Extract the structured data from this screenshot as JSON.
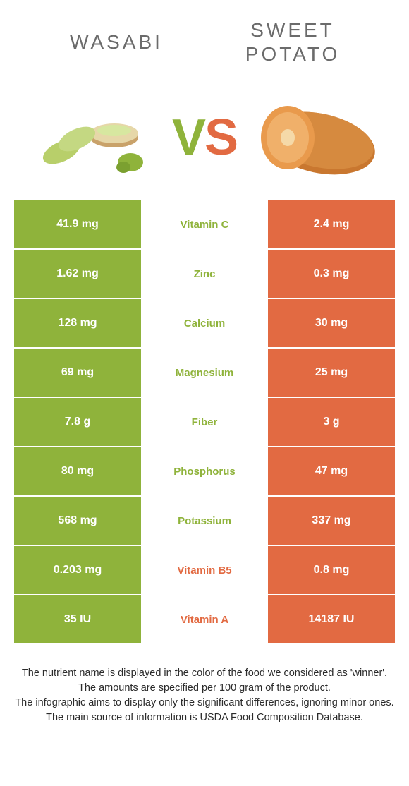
{
  "titles": {
    "left": "WASABI",
    "right_line1": "SWEET",
    "right_line2": "POTATO"
  },
  "vs": {
    "v": "V",
    "s": "S"
  },
  "colors": {
    "left": "#8fb33b",
    "right": "#e26a42",
    "row_text_white": "#ffffff",
    "background": "#ffffff",
    "title_gray": "#6b6b6b",
    "footer_text": "#2b2b2b"
  },
  "rows": [
    {
      "left": "41.9 mg",
      "label": "Vitamin C",
      "right": "2.4 mg",
      "winner": "left"
    },
    {
      "left": "1.62 mg",
      "label": "Zinc",
      "right": "0.3 mg",
      "winner": "left"
    },
    {
      "left": "128 mg",
      "label": "Calcium",
      "right": "30 mg",
      "winner": "left"
    },
    {
      "left": "69 mg",
      "label": "Magnesium",
      "right": "25 mg",
      "winner": "left"
    },
    {
      "left": "7.8 g",
      "label": "Fiber",
      "right": "3 g",
      "winner": "left"
    },
    {
      "left": "80 mg",
      "label": "Phosphorus",
      "right": "47 mg",
      "winner": "left"
    },
    {
      "left": "568 mg",
      "label": "Potassium",
      "right": "337 mg",
      "winner": "left"
    },
    {
      "left": "0.203 mg",
      "label": "Vitamin B5",
      "right": "0.8 mg",
      "winner": "right"
    },
    {
      "left": "35 IU",
      "label": "Vitamin A",
      "right": "14187 IU",
      "winner": "right"
    }
  ],
  "footer": {
    "lines": [
      "The nutrient name is displayed in the color of the food we considered as 'winner'.",
      "The amounts are specified per 100 gram of the product.",
      "The infographic aims to display only the significant differences, ignoring minor ones.",
      "The main source of information is USDA Food Composition Database."
    ]
  }
}
